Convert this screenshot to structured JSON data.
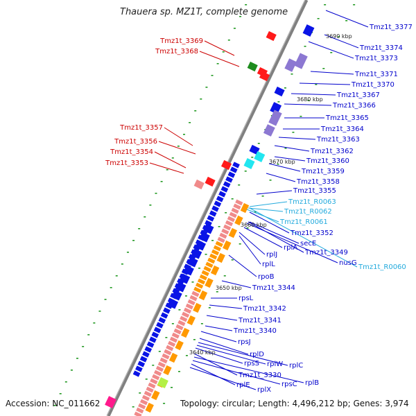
{
  "header": {
    "title": "Thauera sp. MZ1T, complete genome"
  },
  "footer": {
    "accession": "Accession: NC_011662",
    "summary": "Topology: circular; Length: 4,496,212 bp; Genes: 3,974"
  },
  "colors": {
    "label_blue": "#0000cc",
    "label_red": "#cc0000",
    "label_cyan": "#22aadd",
    "backbone": "#888888",
    "gene_blue": "#0a14e6",
    "gene_red": "#ff1a1a",
    "gene_pink": "#f08a8a",
    "gene_orange": "#ff9900",
    "gene_purple": "#8c78d2",
    "gene_green": "#1e8c1e",
    "gene_cyan": "#22e6f0",
    "gene_lime": "#b4f046",
    "gene_magenta": "#ff1a8c",
    "dot_green": "#229922"
  },
  "kbp_marks": [
    "3690 kbp",
    "3680 kbp",
    "3670 kbp",
    "3660 kbp",
    "3650 kbp",
    "3640 kbp"
  ],
  "labels": {
    "left_red": [
      "Tmz1t_3369",
      "Tmz1t_3368",
      "Tmz1t_3357",
      "Tmz1t_3356",
      "Tmz1t_3354",
      "Tmz1t_3353"
    ],
    "right_blue": [
      "Tmz1t_3377",
      "Tmz1t_3374",
      "Tmz1t_3373",
      "Tmz1t_3371",
      "Tmz1t_3370",
      "Tmz1t_3367",
      "Tmz1t_3366",
      "Tmz1t_3365",
      "Tmz1t_3364",
      "Tmz1t_3363",
      "Tmz1t_3362",
      "Tmz1t_3360",
      "Tmz1t_3359",
      "Tmz1t_3358",
      "Tmz1t_3355",
      "Tmz1t_3352",
      "secE",
      "rplA",
      "Tmz1t_3349",
      "nusG",
      "rplJ",
      "rplL",
      "rpoB",
      "Tmz1t_3344",
      "rpsL",
      "Tmz1t_3342",
      "Tmz1t_3341",
      "Tmz1t_3340",
      "rpsJ",
      "rplD",
      "rplC",
      "rplW",
      "rpsS",
      "Tmz1t_3330",
      "rplB",
      "rpsC",
      "rplE",
      "rplX"
    ],
    "right_cyan": [
      "Tmz1t_R0063",
      "Tmz1t_R0062",
      "Tmz1t_R0061",
      "Tmz1t_R0060"
    ]
  }
}
